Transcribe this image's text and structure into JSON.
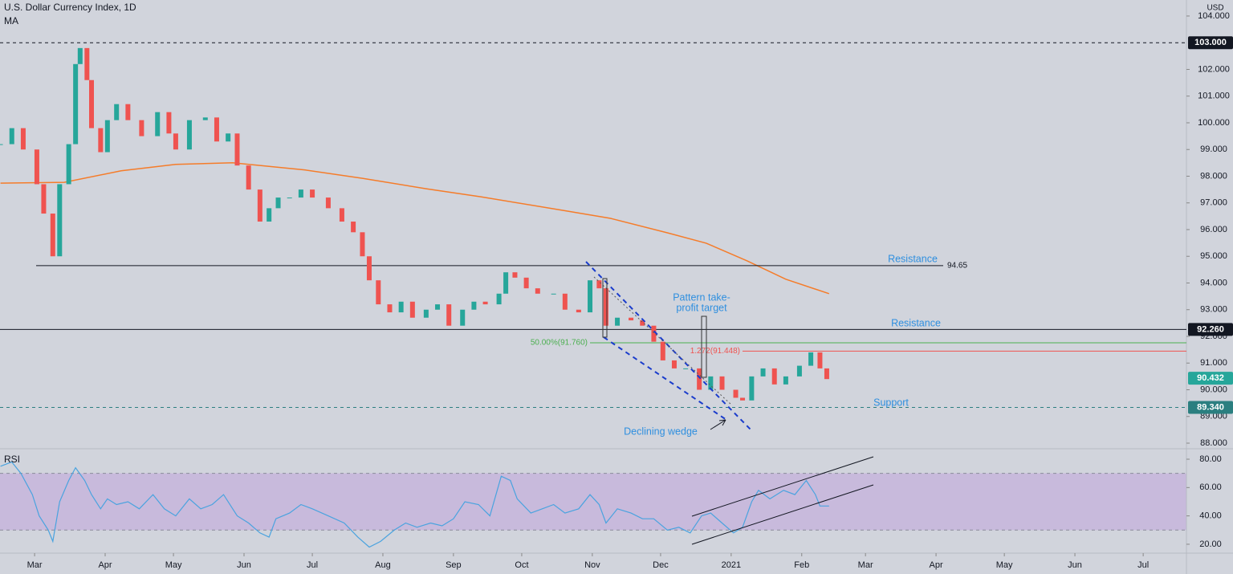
{
  "header": {
    "title": "U.S. Dollar Currency Index, 1D",
    "indicator": "MA",
    "currency": "USD"
  },
  "chart_data": [
    {
      "type": "candlestick",
      "up_color": "#26a69a",
      "down_color": "#ef5350",
      "x": [
        -15,
        -10,
        -5,
        1,
        4,
        8,
        11,
        15,
        18,
        20,
        23,
        25,
        29,
        32,
        36,
        41,
        47,
        54,
        59,
        62,
        68,
        75,
        80,
        85,
        89,
        94,
        99,
        103,
        107,
        112,
        117,
        122,
        129,
        135,
        140,
        144,
        147,
        151,
        156,
        161,
        166,
        172,
        177,
        182,
        188,
        193,
        198,
        204,
        207,
        211,
        216,
        221,
        228,
        233,
        239,
        244,
        248,
        251,
        256,
        262,
        267,
        272,
        276,
        281,
        286,
        292,
        297,
        302,
        308,
        311,
        315,
        320,
        325,
        330,
        336,
        341,
        345,
        348
      ],
      "values": [
        99.2,
        99.8,
        99.0,
        97.7,
        96.6,
        95.0,
        97.7,
        99.2,
        102.2,
        102.8,
        101.6,
        99.8,
        98.9,
        100.1,
        100.7,
        100.1,
        99.5,
        100.4,
        99.6,
        99.0,
        100.1,
        100.2,
        99.3,
        99.6,
        98.4,
        97.5,
        96.3,
        96.8,
        97.2,
        97.2,
        97.5,
        97.2,
        96.8,
        96.3,
        95.9,
        95.0,
        94.1,
        93.2,
        92.9,
        93.3,
        92.7,
        93.0,
        93.2,
        92.4,
        93.0,
        93.3,
        93.2,
        93.6,
        94.4,
        94.2,
        93.8,
        93.6,
        93.6,
        93.0,
        92.9,
        94.1,
        93.8,
        92.4,
        92.7,
        92.6,
        92.4,
        91.8,
        91.1,
        90.8,
        90.8,
        90.0,
        90.5,
        90.0,
        89.7,
        89.6,
        90.5,
        90.8,
        90.2,
        90.5,
        90.9,
        91.4,
        90.8,
        90.4
      ],
      "ma": {
        "color": "#f57c2a",
        "x": [
          -15,
          13,
          38,
          62,
          87,
          119,
          144,
          172,
          196,
          232,
          253,
          278,
          295,
          313,
          330,
          349
        ],
        "values": [
          97.74,
          97.77,
          98.2,
          98.44,
          98.5,
          98.23,
          97.92,
          97.53,
          97.23,
          96.72,
          96.42,
          95.88,
          95.49,
          94.83,
          94.14,
          93.6
        ]
      },
      "xlim": [
        -15.2,
        506
      ],
      "xticks": [
        {
          "value": 0,
          "label": "Mar"
        },
        {
          "value": 31,
          "label": "Apr"
        },
        {
          "value": 61,
          "label": "May"
        },
        {
          "value": 92,
          "label": "Jun"
        },
        {
          "value": 122,
          "label": "Jul"
        },
        {
          "value": 153,
          "label": "Aug"
        },
        {
          "value": 184,
          "label": "Sep"
        },
        {
          "value": 214,
          "label": "Oct"
        },
        {
          "value": 245,
          "label": "Nov"
        },
        {
          "value": 275,
          "label": "Dec"
        },
        {
          "value": 306,
          "label": "2021"
        },
        {
          "value": 337,
          "label": "Feb"
        },
        {
          "value": 365,
          "label": "Mar"
        },
        {
          "value": 396,
          "label": "Apr"
        },
        {
          "value": 426,
          "label": "May"
        },
        {
          "value": 457,
          "label": "Jun"
        },
        {
          "value": 487,
          "label": "Jul"
        }
      ],
      "ylim": [
        87.82,
        104.6
      ],
      "yticks": [
        {
          "value": 88,
          "label": "88.000"
        },
        {
          "value": 89,
          "label": "89.000"
        },
        {
          "value": 90,
          "label": "90.000"
        },
        {
          "value": 91,
          "label": "91.000"
        },
        {
          "value": 92,
          "label": "92.000"
        },
        {
          "value": 93,
          "label": "93.000"
        },
        {
          "value": 94,
          "label": "94.000"
        },
        {
          "value": 95,
          "label": "95.000"
        },
        {
          "value": 96,
          "label": "96.000"
        },
        {
          "value": 97,
          "label": "97.000"
        },
        {
          "value": 98,
          "label": "98.000"
        },
        {
          "value": 99,
          "label": "99.000"
        },
        {
          "value": 100,
          "label": "100.000"
        },
        {
          "value": 101,
          "label": "101.000"
        },
        {
          "value": 102,
          "label": "102.000"
        },
        {
          "value": 104,
          "label": "104.000"
        }
      ],
      "levels": [
        {
          "value": 103,
          "label": "103.000",
          "color": "#131722"
        },
        {
          "value": 94.65,
          "label": "94.65",
          "color": "#131722"
        },
        {
          "value": 92.26,
          "label": "92.260",
          "color": "#131722"
        },
        {
          "value": 91.76,
          "label": "50.00%(91.760)",
          "color": "#4caf50"
        },
        {
          "value": 91.448,
          "label": "1.272(91.448)",
          "color": "#ef5350"
        },
        {
          "value": 89.34,
          "label": "89.340",
          "color": "#2b7f80"
        },
        {
          "value": 90.432,
          "label": "90.432",
          "color": "#26a69a"
        }
      ],
      "annotations": [
        "Resistance",
        "Resistance",
        "Support",
        "Pattern take-",
        "profit target",
        "Declining wedge"
      ]
    },
    {
      "type": "line",
      "title": "RSI",
      "color": "#4aa3df",
      "band": [
        30,
        70
      ],
      "band_color": "#c5b3dc",
      "x": [
        -15,
        -10,
        -6,
        -1,
        2,
        6,
        8,
        11,
        15,
        18,
        22,
        25,
        29,
        32,
        36,
        41,
        46,
        52,
        57,
        62,
        68,
        73,
        78,
        83,
        89,
        94,
        99,
        103,
        106,
        112,
        117,
        122,
        129,
        136,
        142,
        147,
        152,
        158,
        163,
        168,
        174,
        179,
        184,
        189,
        195,
        200,
        205,
        209,
        212,
        218,
        223,
        228,
        233,
        239,
        244,
        248,
        251,
        256,
        262,
        267,
        272,
        278,
        283,
        288,
        293,
        297,
        302,
        307,
        311,
        315,
        318,
        323,
        329,
        334,
        339,
        343,
        345,
        349
      ],
      "values": [
        75,
        78,
        70,
        55,
        40,
        30,
        22,
        50,
        65,
        74,
        65,
        55,
        45,
        52,
        48,
        50,
        45,
        55,
        45,
        40,
        52,
        45,
        48,
        55,
        40,
        35,
        28,
        25,
        38,
        42,
        48,
        45,
        40,
        35,
        25,
        18,
        22,
        30,
        35,
        32,
        35,
        33,
        38,
        50,
        48,
        40,
        68,
        65,
        52,
        42,
        45,
        48,
        42,
        45,
        55,
        48,
        35,
        45,
        42,
        38,
        38,
        30,
        32,
        28,
        40,
        42,
        35,
        28,
        32,
        50,
        58,
        52,
        58,
        55,
        65,
        55,
        47,
        47
      ],
      "ylim": [
        14.3,
        86.8
      ],
      "yticks": [
        {
          "value": 20,
          "label": "20.00"
        },
        {
          "value": 40,
          "label": "40.00"
        },
        {
          "value": 60,
          "label": "60.00"
        },
        {
          "value": 80,
          "label": "80.00"
        }
      ]
    }
  ]
}
